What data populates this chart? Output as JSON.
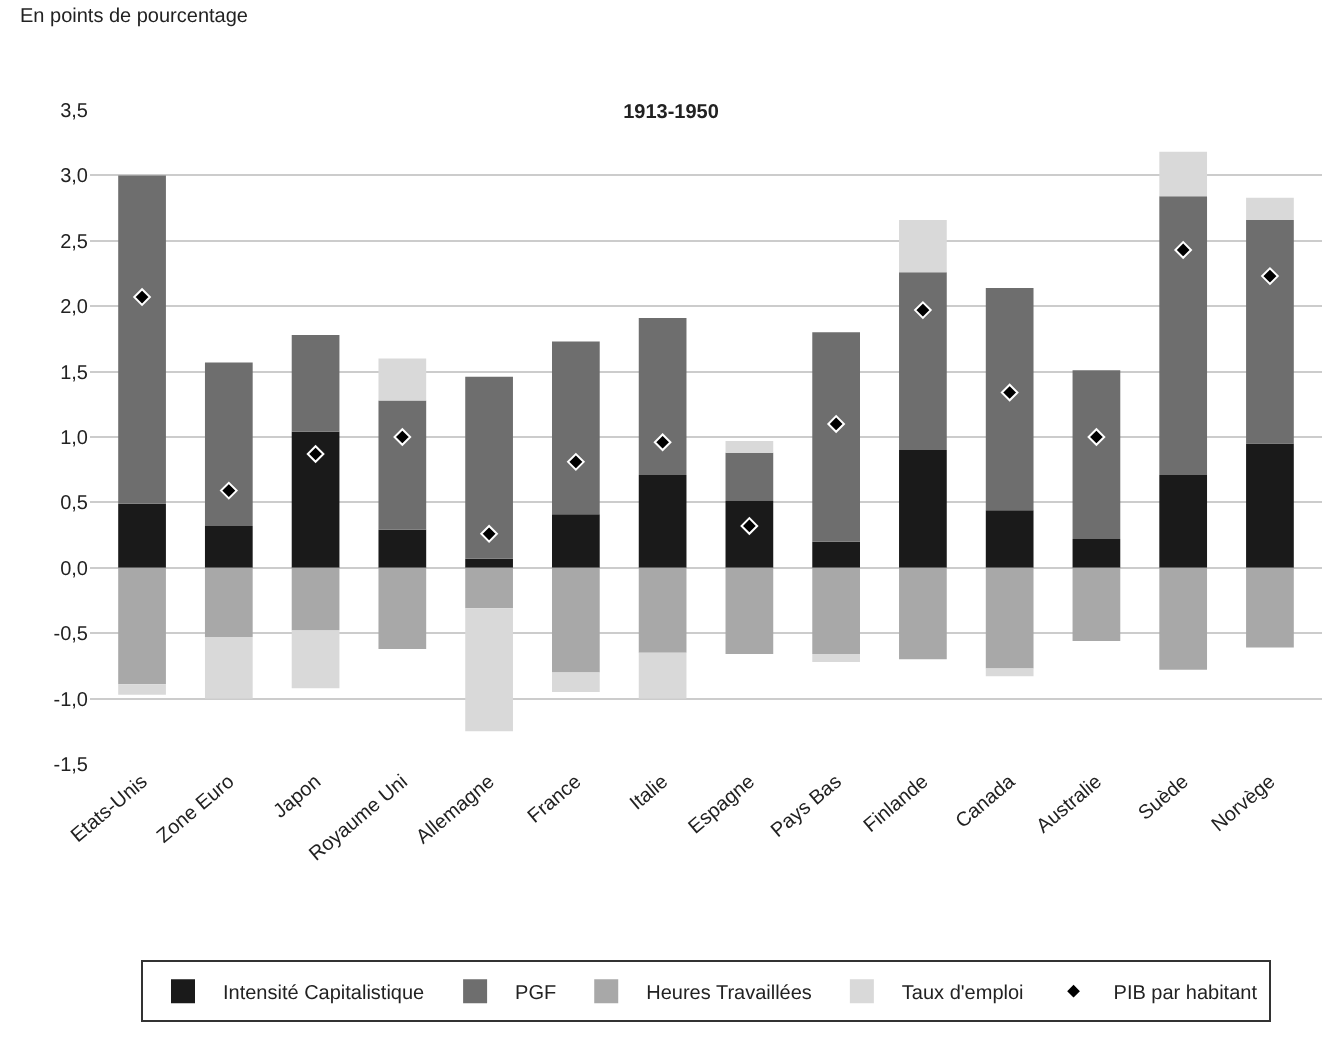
{
  "chart_data": {
    "type": "bar",
    "title": "1913-1950",
    "ylabel": "En points de pourcentage",
    "categories": [
      "Etats-Unis",
      "Zone Euro",
      "Japon",
      "Royaume Uni",
      "Allemagne",
      "France",
      "Italie",
      "Espagne",
      "Pays Bas",
      "Finlande",
      "Canada",
      "Australie",
      "Suède",
      "Norvège"
    ],
    "stacked": true,
    "series": [
      {
        "name": "Intensité Capitalistique",
        "color": "#1a1a1a",
        "values": [
          0.49,
          0.32,
          1.04,
          0.29,
          0.07,
          0.41,
          0.71,
          0.51,
          0.2,
          0.9,
          0.44,
          0.22,
          0.71,
          0.95
        ]
      },
      {
        "name": "PGF",
        "color": "#6e6e6e",
        "values": [
          2.51,
          1.25,
          0.74,
          0.99,
          1.39,
          1.32,
          1.2,
          0.37,
          1.6,
          1.36,
          1.7,
          1.29,
          2.13,
          1.71
        ]
      },
      {
        "name": "Heures Travaillées",
        "color": "#a8a8a8",
        "values": [
          -0.89,
          -0.53,
          -0.48,
          -0.62,
          -0.31,
          -0.8,
          -0.65,
          -0.66,
          -0.66,
          -0.7,
          -0.77,
          -0.56,
          -0.78,
          -0.61
        ]
      },
      {
        "name": "Taux d'emploi",
        "color": "#d9d9d9",
        "values": [
          -0.08,
          -0.47,
          -0.44,
          0.32,
          -0.94,
          -0.15,
          -0.35,
          0.09,
          -0.06,
          0.4,
          -0.06,
          null,
          0.34,
          0.17
        ]
      },
      {
        "name": "PIB par habitant",
        "type": "scatter",
        "color": "#000000",
        "marker": "diamond",
        "values": [
          2.07,
          0.59,
          0.87,
          1.0,
          0.26,
          0.81,
          0.96,
          0.32,
          1.1,
          1.97,
          1.34,
          1.0,
          2.43,
          2.23
        ]
      }
    ],
    "ylim": [
      -1.5,
      3.5
    ],
    "yticks": [
      {
        "value": -1.5,
        "label": "-1,5"
      },
      {
        "value": -1.0,
        "label": "-1,0"
      },
      {
        "value": -0.5,
        "label": "-0,5"
      },
      {
        "value": 0,
        "label": "0,0"
      },
      {
        "value": 0.5,
        "label": "0,5"
      },
      {
        "value": 1.0,
        "label": "1,0"
      },
      {
        "value": 1.5,
        "label": "1,5"
      },
      {
        "value": 2.0,
        "label": "2,0"
      },
      {
        "value": 2.5,
        "label": "2,5"
      },
      {
        "value": 3.0,
        "label": "3,0"
      },
      {
        "value": 3.5,
        "label": "3,5"
      }
    ],
    "grid": "y",
    "legend": "bottom"
  }
}
